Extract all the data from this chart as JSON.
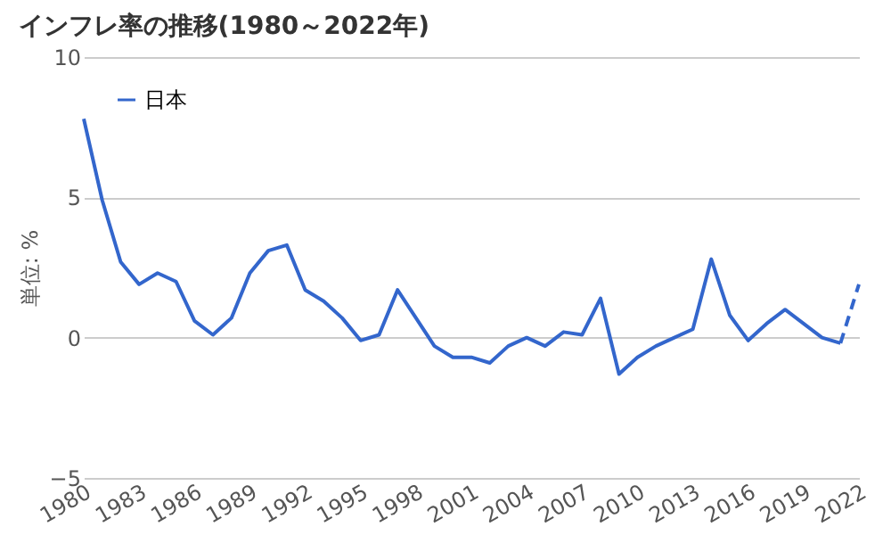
{
  "chart_data": {
    "type": "line",
    "title": "インフレ率の推移(1980～2022年)",
    "ylabel": "単位: %",
    "x": [
      1980,
      1981,
      1982,
      1983,
      1984,
      1985,
      1986,
      1987,
      1988,
      1989,
      1990,
      1991,
      1992,
      1993,
      1994,
      1995,
      1996,
      1997,
      1998,
      1999,
      2000,
      2001,
      2002,
      2003,
      2004,
      2005,
      2006,
      2007,
      2008,
      2009,
      2010,
      2011,
      2012,
      2013,
      2014,
      2015,
      2016,
      2017,
      2018,
      2019,
      2020,
      2021,
      2022
    ],
    "series": [
      {
        "name": "日本",
        "color": "#3366cc",
        "line_style": "solid",
        "values": [
          7.8,
          4.9,
          2.7,
          1.9,
          2.3,
          2.0,
          0.6,
          0.1,
          0.7,
          2.3,
          3.1,
          3.3,
          1.7,
          1.3,
          0.7,
          -0.1,
          0.1,
          1.7,
          0.7,
          -0.3,
          -0.7,
          -0.7,
          -0.9,
          -0.3,
          0.0,
          -0.3,
          0.2,
          0.1,
          1.4,
          -1.3,
          -0.7,
          -0.3,
          0.0,
          0.3,
          2.8,
          0.8,
          -0.1,
          0.5,
          1.0,
          0.5,
          0.0,
          -0.2,
          null
        ]
      },
      {
        "color": "#3366cc",
        "line_style": "dashed",
        "values": [
          null,
          null,
          null,
          null,
          null,
          null,
          null,
          null,
          null,
          null,
          null,
          null,
          null,
          null,
          null,
          null,
          null,
          null,
          null,
          null,
          null,
          null,
          null,
          null,
          null,
          null,
          null,
          null,
          null,
          null,
          null,
          null,
          null,
          null,
          null,
          null,
          null,
          null,
          null,
          null,
          null,
          -0.2,
          1.9
        ]
      }
    ],
    "xlim": [
      1980,
      2022
    ],
    "xticks": [
      1980,
      1983,
      1986,
      1989,
      1992,
      1995,
      1998,
      2001,
      2004,
      2007,
      2010,
      2013,
      2016,
      2019,
      2022
    ],
    "ylim": [
      -5,
      10
    ],
    "yticks": [
      -5,
      0,
      5,
      10
    ],
    "grid": "y",
    "legend": "top left",
    "marker": "none"
  }
}
